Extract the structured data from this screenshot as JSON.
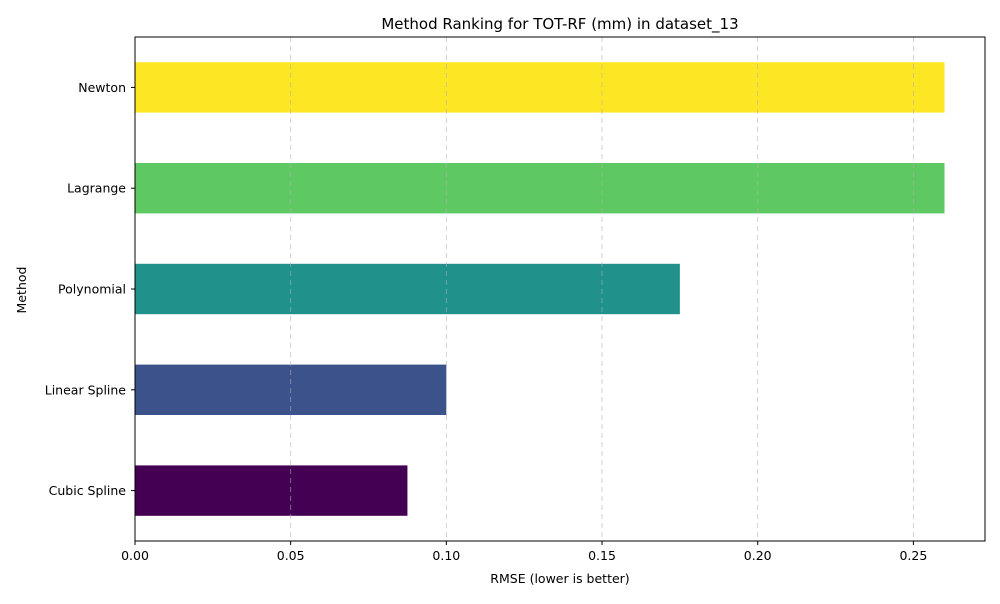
{
  "chart_data": {
    "type": "bar",
    "orientation": "horizontal",
    "title": "Method Ranking for TOT-RF (mm) in dataset_13",
    "xlabel": "RMSE (lower is better)",
    "ylabel": "Method",
    "categories": [
      "Cubic Spline",
      "Linear Spline",
      "Polynomial",
      "Lagrange",
      "Newton"
    ],
    "values": [
      0.0875,
      0.1,
      0.175,
      0.26,
      0.26
    ],
    "colors": [
      "#440154",
      "#3b528b",
      "#21918c",
      "#5ec962",
      "#fde725"
    ],
    "xlim": [
      0,
      0.273
    ],
    "xticks": [
      0.0,
      0.05,
      0.1,
      0.15,
      0.2,
      0.25
    ],
    "xtick_labels": [
      "0.00",
      "0.05",
      "0.10",
      "0.15",
      "0.20",
      "0.25"
    ],
    "grid": "x-axis dashed",
    "legend": "none"
  }
}
